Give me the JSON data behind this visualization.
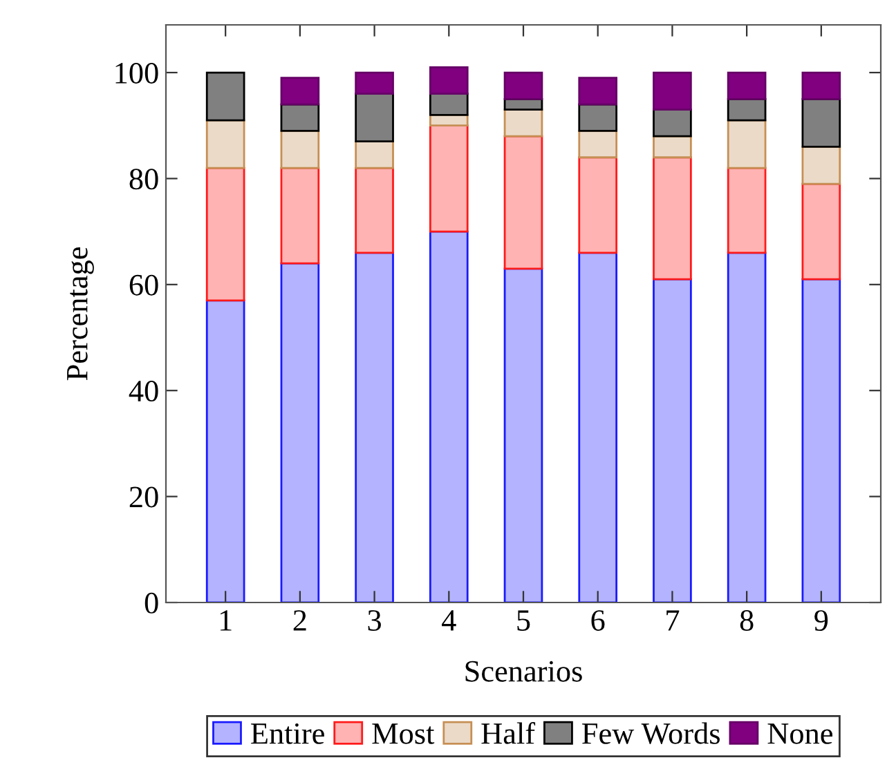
{
  "chart_data": {
    "type": "bar",
    "stacked": true,
    "xlabel": "Scenarios",
    "ylabel": "Percentage",
    "x": [
      1,
      2,
      3,
      4,
      5,
      6,
      7,
      8,
      9
    ],
    "xlim": [
      0.2,
      9.8
    ],
    "xticks": [
      1,
      2,
      3,
      4,
      5,
      6,
      7,
      8,
      9
    ],
    "ylim": [
      0,
      109
    ],
    "yticks": [
      0,
      20,
      40,
      60,
      80,
      100
    ],
    "legend": "bottom",
    "grid": false,
    "series": [
      {
        "name": "Entire",
        "color": "#b3b3ff",
        "values": [
          57,
          64,
          66,
          70,
          63,
          66,
          61,
          66,
          61
        ]
      },
      {
        "name": "Most",
        "color": "#ffb3b3",
        "values": [
          25,
          18,
          16,
          20,
          25,
          18,
          23,
          16,
          18
        ]
      },
      {
        "name": "Half",
        "color": "#ebdac8",
        "values": [
          9,
          7,
          5,
          2,
          5,
          5,
          4,
          9,
          7
        ]
      },
      {
        "name": "Few Words",
        "color": "#808080",
        "values": [
          9,
          5,
          9,
          4,
          2,
          5,
          5,
          4,
          9
        ]
      },
      {
        "name": "None",
        "color": "#800080",
        "values": [
          0,
          5,
          4,
          5,
          5,
          5,
          7,
          5,
          5
        ]
      }
    ]
  }
}
